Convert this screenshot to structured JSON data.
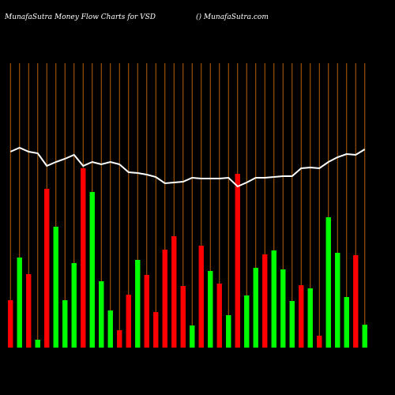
{
  "chart_data": {
    "type": "bar",
    "title": "MunafaSutra  Money Flow  Charts for VSD",
    "subtitle": "() MunafaSutra.com",
    "categories": [
      null,
      null,
      null,
      null,
      null,
      null,
      null,
      null,
      null,
      null,
      null,
      null,
      null,
      null,
      null,
      null,
      null,
      null,
      null,
      null,
      null,
      null,
      null,
      null,
      null,
      null,
      null,
      null,
      null,
      null,
      null,
      null,
      null,
      null,
      null,
      null,
      null,
      null,
      null,
      null
    ],
    "values": [
      60,
      114,
      93,
      10,
      201,
      153,
      60,
      107,
      227,
      197,
      84,
      47,
      22,
      67,
      111,
      92,
      45,
      124,
      141,
      78,
      28,
      129,
      97,
      81,
      41,
      220,
      66,
      101,
      118,
      123,
      99,
      59,
      79,
      75,
      15,
      165,
      120,
      64,
      117,
      29
    ],
    "colors": [
      "#ff0000",
      "#00ff00",
      "#ff0000",
      "#00ff00",
      "#ff0000",
      "#00ff00",
      "#00ff00",
      "#00ff00",
      "#ff0000",
      "#00ff00",
      "#00ff00",
      "#00ff00",
      "#ff0000",
      "#ff0000",
      "#00ff00",
      "#ff0000",
      "#ff0000",
      "#ff0000",
      "#ff0000",
      "#ff0000",
      "#00ff00",
      "#ff0000",
      "#00ff00",
      "#ff0000",
      "#00ff00",
      "#ff0000",
      "#00ff00",
      "#00ff00",
      "#ff0000",
      "#00ff00",
      "#00ff00",
      "#00ff00",
      "#ff0000",
      "#00ff00",
      "#ff0000",
      "#00ff00",
      "#00ff00",
      "#00ff00",
      "#ff0000",
      "#00ff00"
    ],
    "line": {
      "color": "#ffffff",
      "values": [
        248,
        253,
        248,
        246,
        230,
        235,
        239,
        244,
        230,
        235,
        232,
        235,
        232,
        222,
        221,
        219,
        216,
        208,
        209,
        210,
        215,
        214,
        214,
        214,
        215,
        204,
        209,
        215,
        215,
        216,
        217,
        217,
        227,
        228,
        227,
        235,
        241,
        245,
        244,
        251
      ]
    },
    "ylim": [
      0,
      360
    ],
    "grid_color": "#b8600b"
  }
}
